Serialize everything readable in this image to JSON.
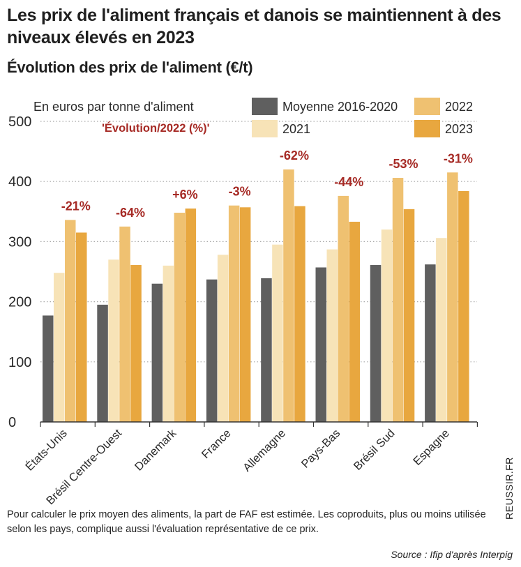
{
  "title": "Les prix de l'aliment français et danois se maintiennent à des niveaux élevés en 2023",
  "subtitle": "Évolution des prix de l'aliment (€/t)",
  "note": "Pour calculer le prix moyen des aliments, la part de FAF est estimée. Les coproduits, plus ou moins utilisée selon les pays, complique aussi l'évaluation représentative de ce prix.",
  "source": "Source : Ifip d'après Interpig",
  "brand": "REUSSIR.FR",
  "colors": {
    "Moyenne 2016-2020": "#5f5f5f",
    "2021": "#f7e3b7",
    "2022": "#efc171",
    "2023": "#e8a73f",
    "evolution": "#a62a25",
    "grid": "#a8a8a8"
  },
  "chart_data": {
    "type": "bar",
    "unit_label": "En euros par tonne d'aliment",
    "evolution_label": "'Évolution/2022 (%)'",
    "categories": [
      "États-Unis",
      "Brésil Centre-Ouest",
      "Danemark",
      "France",
      "Allemagne",
      "Pays-Bas",
      "Brésil Sud",
      "Espagne"
    ],
    "series": [
      {
        "name": "Moyenne 2016-2020",
        "values": [
          177,
          195,
          230,
          237,
          239,
          257,
          261,
          262
        ]
      },
      {
        "name": "2021",
        "values": [
          248,
          270,
          260,
          278,
          295,
          287,
          320,
          306
        ]
      },
      {
        "name": "2022",
        "values": [
          336,
          325,
          348,
          360,
          420,
          376,
          406,
          415
        ]
      },
      {
        "name": "2023",
        "values": [
          315,
          261,
          355,
          357,
          359,
          333,
          354,
          384
        ]
      }
    ],
    "evolution": [
      "-21%",
      "-64%",
      "+6%",
      "-3%",
      "-62%",
      "-44%",
      "-53%",
      "-31%"
    ],
    "ylim": [
      0,
      500
    ],
    "yticks": [
      0,
      100,
      200,
      300,
      400,
      500
    ],
    "grid": true,
    "legend_position": "top-right"
  }
}
